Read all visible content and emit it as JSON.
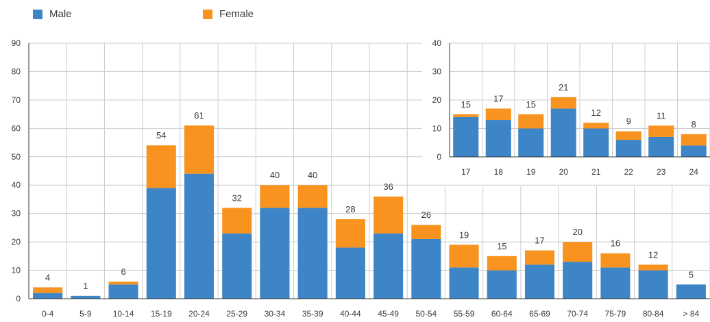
{
  "legend": {
    "male": "Male",
    "female": "Female"
  },
  "colors": {
    "male": "#3d85c6",
    "female": "#f7931e",
    "grid": "#cccccc",
    "axis": "#333333"
  },
  "chart_data": [
    {
      "type": "bar",
      "stacked": true,
      "categories": [
        "0-4",
        "5-9",
        "10-14",
        "15-19",
        "20-24",
        "25-29",
        "30-34",
        "35-39",
        "40-44",
        "45-49",
        "50-54",
        "55-59",
        "60-64",
        "65-69",
        "70-74",
        "75-79",
        "80-84",
        "> 84"
      ],
      "series": [
        {
          "name": "Male",
          "values": [
            2,
            1,
            5,
            39,
            44,
            23,
            32,
            32,
            18,
            23,
            21,
            11,
            10,
            12,
            13,
            11,
            10,
            5
          ]
        },
        {
          "name": "Female",
          "values": [
            2,
            0,
            1,
            15,
            17,
            9,
            8,
            8,
            10,
            13,
            5,
            8,
            5,
            5,
            7,
            5,
            2,
            0
          ]
        }
      ],
      "totals": [
        4,
        1,
        6,
        54,
        61,
        32,
        40,
        40,
        28,
        36,
        26,
        19,
        15,
        17,
        20,
        16,
        12,
        5
      ],
      "ylim": [
        0,
        90
      ],
      "yticks": [
        "0",
        "10",
        "20",
        "30",
        "40",
        "50",
        "60",
        "70",
        "80",
        "90"
      ],
      "grid": true,
      "legend": "top-left"
    },
    {
      "type": "bar",
      "stacked": true,
      "inset": true,
      "categories": [
        "17",
        "18",
        "19",
        "20",
        "21",
        "22",
        "23",
        "24"
      ],
      "series": [
        {
          "name": "Male",
          "values": [
            14,
            13,
            10,
            17,
            10,
            6,
            7,
            4
          ]
        },
        {
          "name": "Female",
          "values": [
            1,
            4,
            5,
            4,
            2,
            3,
            4,
            4
          ]
        }
      ],
      "totals": [
        15,
        17,
        15,
        21,
        12,
        9,
        11,
        8
      ],
      "ylim": [
        0,
        40
      ],
      "yticks": [
        "0",
        "10",
        "20",
        "30",
        "40"
      ],
      "grid": true
    }
  ]
}
